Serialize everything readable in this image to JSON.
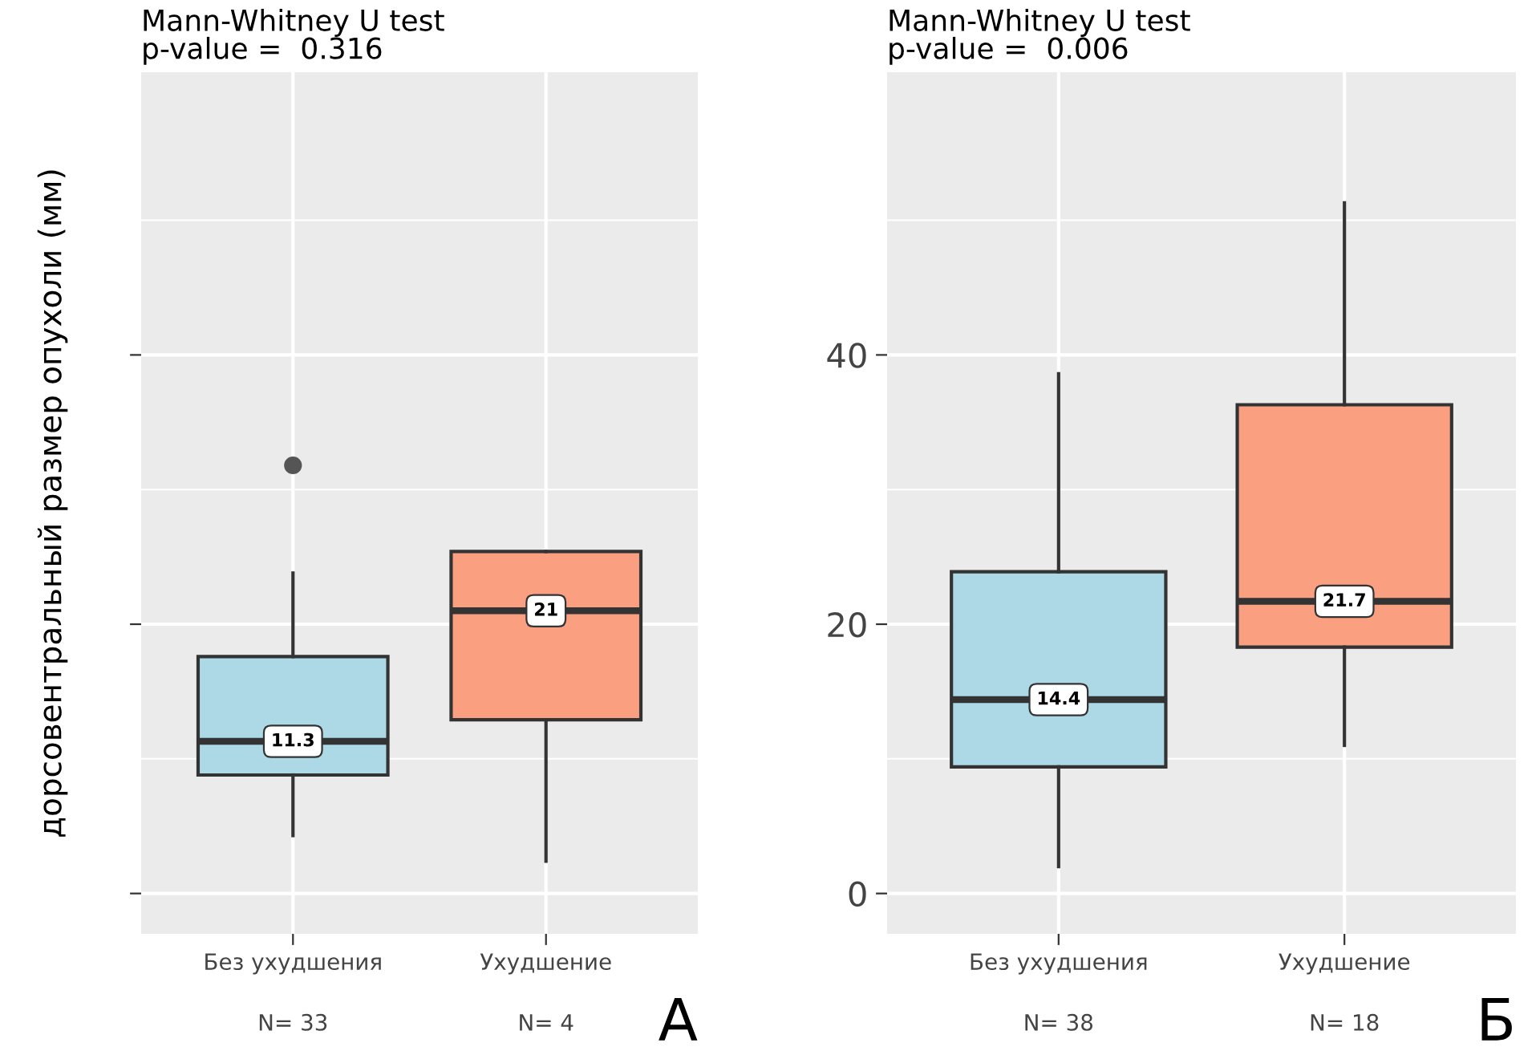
{
  "chart_data": [
    {
      "type": "box",
      "title": "Mann-Whitney U test\np-value =  0.316",
      "ylabel": "дорсовентральный размер опухоли (мм)",
      "categories": [
        "Без ухудшения",
        "Ухудшение"
      ],
      "colors": [
        "#add8e6",
        "#fa9f80"
      ],
      "boxes": [
        {
          "low": 4.3,
          "q1": 8.8,
          "median": 11.3,
          "q3": 17.6,
          "high": 23.8,
          "outliers": [
            31.8
          ]
        },
        {
          "low": 2.4,
          "q1": 12.9,
          "median": 21,
          "q3": 25.4,
          "high": 25.4
        }
      ],
      "ylim": [
        -3,
        61
      ],
      "yticks": [
        {
          "value": 0,
          "label": null
        },
        {
          "value": 20,
          "label": null
        },
        {
          "value": 40,
          "label": null
        }
      ],
      "tick_labels": "x",
      "grid": true,
      "value_labels": [
        "11.3",
        "21"
      ],
      "annotations": [
        "N= 33",
        "N= 4",
        "А"
      ]
    },
    {
      "type": "box",
      "title": "Mann-Whitney U test\np-value =  0.006",
      "categories": [
        "Без ухудшения",
        "Ухудшение"
      ],
      "colors": [
        "#add8e6",
        "#fa9f80"
      ],
      "boxes": [
        {
          "low": 2.0,
          "q1": 9.4,
          "median": 14.4,
          "q3": 23.9,
          "high": 38.6
        },
        {
          "low": 11.0,
          "q1": 18.3,
          "median": 21.7,
          "q3": 36.3,
          "high": 51.3
        }
      ],
      "ylim": [
        -3,
        61
      ],
      "yticks": [
        0,
        20,
        40
      ],
      "grid": true,
      "value_labels": [
        "14.4",
        "21.7"
      ],
      "annotations": [
        "N= 38",
        "N= 18",
        "Б"
      ]
    }
  ]
}
